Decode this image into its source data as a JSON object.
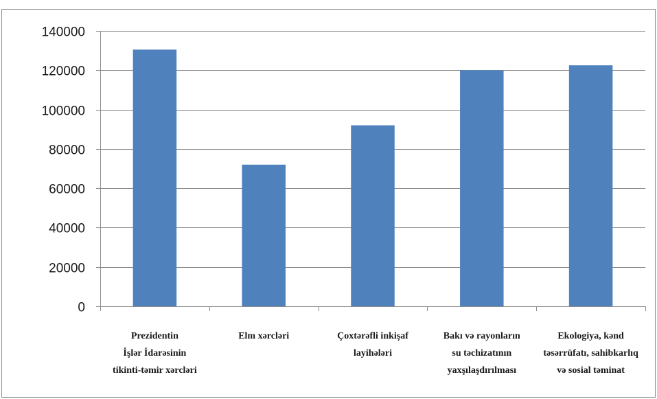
{
  "chart_data": {
    "type": "bar",
    "categories": [
      [
        "Prezidentin",
        "İşlər İdarəsinin",
        "tikinti-təmir xərcləri"
      ],
      [
        "Elm xərcləri"
      ],
      [
        "Çoxtərəfli inkişaf",
        "layihələri"
      ],
      [
        "Bakı və rayonların",
        "su təchizatının",
        "yaxşılaşdırılması"
      ],
      [
        "Ekologiya, kənd",
        "təsərrüfatı, sahibkarlıq",
        "və sosial təminat"
      ]
    ],
    "values": [
      130500,
      72000,
      92000,
      120000,
      122500
    ],
    "ylim": [
      0,
      140000
    ],
    "yticks": [
      0,
      20000,
      40000,
      60000,
      80000,
      100000,
      120000,
      140000
    ],
    "grid": true,
    "bar_color": "#4f81bd",
    "title": "",
    "xlabel": "",
    "ylabel": ""
  }
}
